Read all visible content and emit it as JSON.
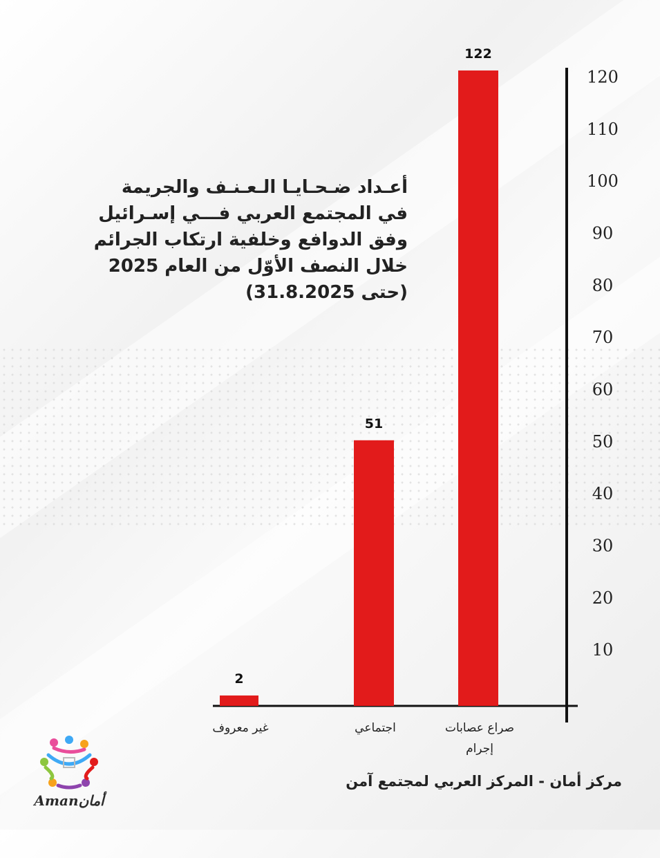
{
  "title_lines": [
    "أعـداد ضـحـايـا الـعـنـف والجريمة",
    "في المجتمع العربي فـــي إسـرائيل",
    "وفق الدوافع وخلفية ارتكاب الجرائم",
    "خلال النصف الأوّل من العام 2025",
    "(حتى 31.8.2025)"
  ],
  "footer": "مركز أمان  - المركز العربي لمجتمع آمن",
  "logo": {
    "text": "Amanأمان",
    "icon": "people-circle-logo"
  },
  "colors": {
    "bar": "#e21b1b",
    "axis": "#111111",
    "text": "#222222"
  },
  "chart_data": {
    "type": "bar",
    "categories": [
      [
        "غير معروف"
      ],
      [
        "اجتماعي"
      ],
      [
        "صراع عصابات",
        "إجرام"
      ]
    ],
    "values": [
      2,
      51,
      122
    ],
    "value_labels": [
      "2",
      "51",
      "122"
    ],
    "y_ticks": [
      10,
      20,
      30,
      40,
      50,
      60,
      70,
      80,
      90,
      100,
      110,
      120
    ],
    "ylim": [
      0,
      120
    ],
    "y_axis_side": "right",
    "grid": false,
    "legend": "none"
  }
}
